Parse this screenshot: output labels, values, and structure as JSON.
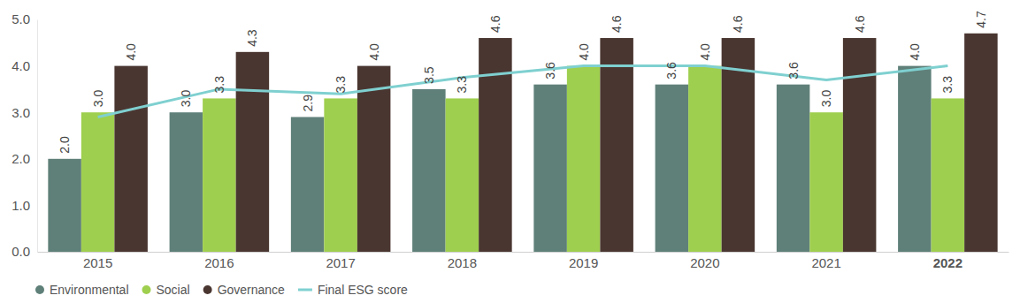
{
  "chart_data": {
    "type": "bar",
    "categories": [
      "2015",
      "2016",
      "2017",
      "2018",
      "2019",
      "2020",
      "2021",
      "2022"
    ],
    "series": [
      {
        "name": "Environmental",
        "color": "#5f8079",
        "values": [
          2.0,
          3.0,
          2.9,
          3.5,
          3.6,
          3.6,
          3.6,
          4.0
        ],
        "value_labels": [
          "2.0",
          "3.0",
          "2.9",
          "3.5",
          "3.6",
          "3.6",
          "3.6",
          "4.0"
        ]
      },
      {
        "name": "Social",
        "color": "#9fcf4e",
        "values": [
          3.0,
          3.3,
          3.3,
          3.3,
          4.0,
          4.0,
          3.0,
          3.3
        ],
        "value_labels": [
          "3.0",
          "3.3",
          "3.3",
          "3.3",
          "4.0",
          "4.0",
          "3.0",
          "3.3"
        ]
      },
      {
        "name": "Governance",
        "color": "#4a3631",
        "values": [
          4.0,
          4.3,
          4.0,
          4.6,
          4.6,
          4.6,
          4.6,
          4.7
        ],
        "value_labels": [
          "4.0",
          "4.3",
          "4.0",
          "4.6",
          "4.6",
          "4.6",
          "4.6",
          "4.7"
        ]
      },
      {
        "name": "Final ESG score",
        "color": "#7fd0d0",
        "type": "line",
        "values": [
          2.9,
          3.5,
          3.4,
          3.75,
          4.0,
          4.0,
          3.7,
          4.0
        ]
      }
    ],
    "ylim": [
      0,
      5
    ],
    "yticks": [
      {
        "value": 0,
        "label": "0.0"
      },
      {
        "value": 1,
        "label": "1.0"
      },
      {
        "value": 2,
        "label": "2.0"
      },
      {
        "value": 3,
        "label": "3.0"
      },
      {
        "value": 4,
        "label": "4.0"
      },
      {
        "value": 5,
        "label": "5.0"
      }
    ],
    "grid": false,
    "legend": "bottom-left",
    "data_labels": true
  }
}
